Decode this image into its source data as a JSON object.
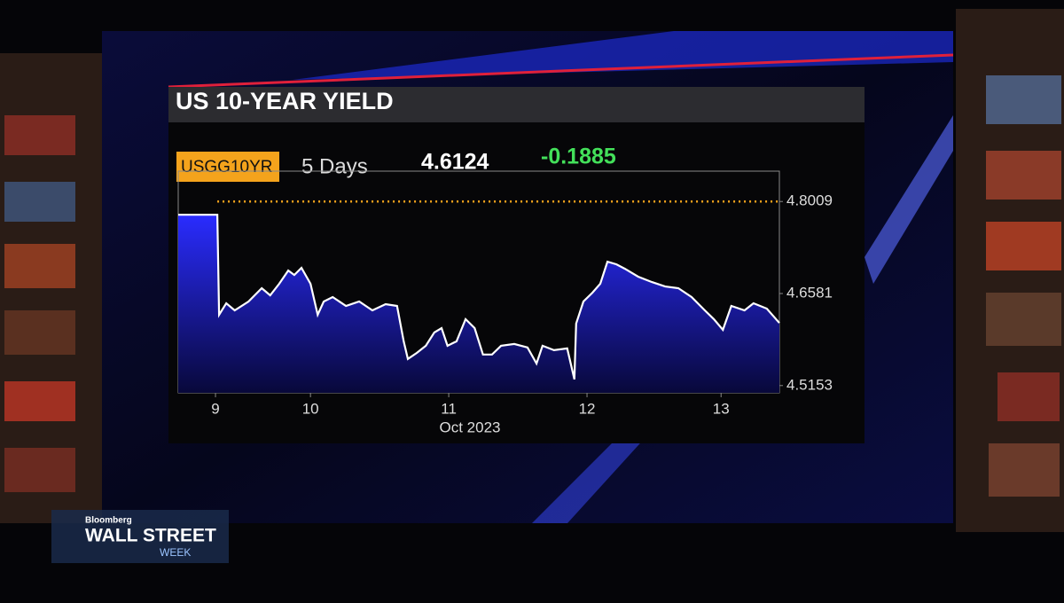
{
  "chart_data": {
    "type": "area",
    "title": "US 10-YEAR YIELD",
    "ticker": "USGG10YR",
    "period": "5 Days",
    "last": 4.6124,
    "change": -0.1885,
    "x_label": "Oct 2023",
    "x": [
      0,
      6.5,
      6.8,
      8.0,
      9.4,
      11.7,
      13.9,
      15.3,
      16.8,
      18.3,
      19.3,
      20.5,
      22.0,
      23.2,
      24.2,
      25.7,
      27.9,
      30.1,
      32.3,
      34.5,
      36.4,
      37.5,
      38.2,
      39.7,
      41.2,
      42.6,
      43.8,
      44.8,
      46.3,
      47.8,
      49.3,
      50.7,
      52.2,
      53.7,
      55.9,
      58.1,
      59.6,
      60.6,
      62.5,
      64.7,
      65.9,
      66.2,
      67.4,
      68.9,
      70.2,
      71.4,
      72.9,
      74.3,
      76.5,
      78.8,
      81.0,
      83.2,
      85.4,
      87.6,
      89.1,
      90.6,
      92.0,
      94.2,
      95.7,
      97.9,
      100
    ],
    "values": [
      4.7803,
      4.7803,
      4.6251,
      4.643,
      4.632,
      4.6457,
      4.6663,
      4.6553,
      4.6732,
      4.6938,
      4.6869,
      4.6979,
      4.6732,
      4.6251,
      4.6457,
      4.6526,
      4.6388,
      4.6457,
      4.632,
      4.6416,
      4.6388,
      4.584,
      4.5565,
      4.5661,
      4.5771,
      4.5977,
      4.6045,
      4.5771,
      4.584,
      4.6183,
      4.6045,
      4.5634,
      4.5634,
      4.5771,
      4.5798,
      4.5744,
      4.5496,
      4.5771,
      4.5702,
      4.573,
      4.5249,
      4.6114,
      4.6457,
      4.6594,
      4.6732,
      4.7075,
      4.7034,
      4.6965,
      4.6842,
      4.6759,
      4.669,
      4.6663,
      4.6526,
      4.632,
      4.6183,
      4.6018,
      4.6388,
      4.632,
      4.643,
      4.6347,
      4.6124
    ],
    "color": "#1e22ff",
    "xlim": [
      0,
      100
    ],
    "xticks": [
      {
        "value": 6.2,
        "label": "9"
      },
      {
        "value": 22.0,
        "label": "10"
      },
      {
        "value": 45.0,
        "label": "11"
      },
      {
        "value": 68.0,
        "label": "12"
      },
      {
        "value": 90.3,
        "label": "13"
      }
    ],
    "ylim": [
      4.504,
      4.848
    ],
    "yticks": [
      4.5153,
      4.6581,
      4.8009
    ]
  },
  "overlay": {
    "brand": "Bloomberg",
    "show": "WALL STREET",
    "show_sub": "WEEK"
  }
}
